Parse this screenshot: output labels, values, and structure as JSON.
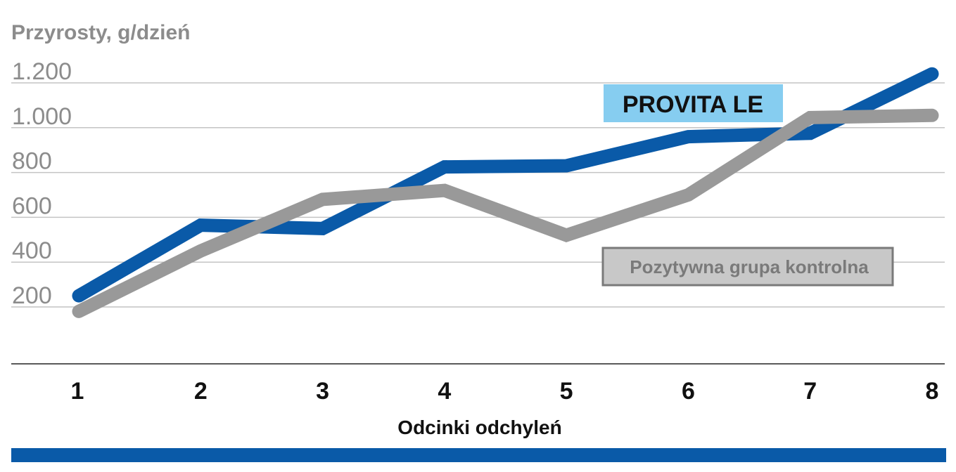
{
  "chart_data": {
    "type": "line",
    "ylabel": "Przyrosty, g/dzień",
    "xlabel": "Odcinki odchyleń",
    "x": [
      "1",
      "2",
      "3",
      "4",
      "5",
      "6",
      "7",
      "8"
    ],
    "yticks": [
      "200",
      "400",
      "600",
      "800",
      "1.000",
      "1.200"
    ],
    "ytick_values": [
      200,
      400,
      600,
      800,
      1000,
      1200
    ],
    "ylim": [
      0,
      1300
    ],
    "grid": true,
    "series": [
      {
        "name": "PROVITA LE",
        "color": "#0a5aa8",
        "x": [
          1,
          2,
          3,
          4,
          5,
          6,
          7,
          8
        ],
        "values": [
          250,
          565,
          550,
          825,
          830,
          960,
          975,
          1240
        ]
      },
      {
        "name": "Pozytywna grupa kontrolna",
        "color": "#999999",
        "x": [
          1,
          2,
          3,
          4,
          5,
          6,
          7,
          8
        ],
        "values": [
          180,
          450,
          680,
          720,
          520,
          700,
          1045,
          1055
        ]
      }
    ],
    "legend": [
      {
        "label": "PROVITA LE",
        "background": "#86cdf0"
      },
      {
        "label": "Pozytywna grupa kontrolna",
        "background": "#c8c8c8",
        "border": "#7a7a7a"
      }
    ]
  },
  "footer_bar_color": "#0a5aa8"
}
